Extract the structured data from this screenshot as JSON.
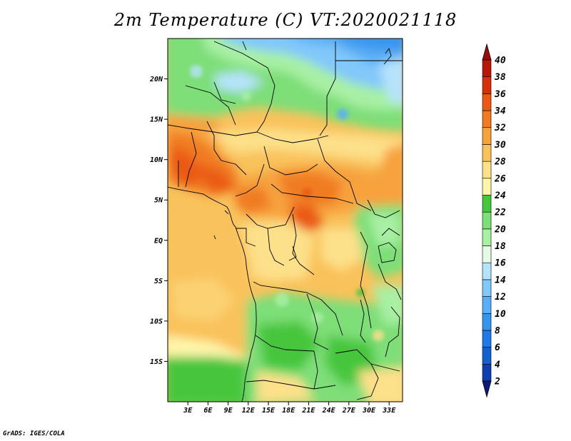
{
  "title": "2m Temperature (C) VT:2020021118",
  "credit": "GrADS: IGES/COLA",
  "chart_data": {
    "type": "heatmap",
    "title": "2m Temperature (C) VT:2020021118",
    "x_ticks": [
      "3E",
      "6E",
      "9E",
      "12E",
      "15E",
      "18E",
      "21E",
      "24E",
      "27E",
      "30E",
      "33E"
    ],
    "y_ticks": [
      "20N",
      "15N",
      "10N",
      "5N",
      "EQ",
      "5S",
      "10S",
      "15S"
    ],
    "lon_range": [
      0,
      35
    ],
    "lat_range": [
      -20,
      25
    ],
    "colorbar": {
      "labels": [
        "40",
        "38",
        "36",
        "34",
        "32",
        "30",
        "28",
        "26",
        "24",
        "22",
        "20",
        "18",
        "16",
        "14",
        "12",
        "10",
        "8",
        "6",
        "4",
        "2"
      ],
      "levels": [
        2,
        4,
        6,
        8,
        10,
        12,
        14,
        16,
        18,
        20,
        22,
        24,
        26,
        28,
        30,
        32,
        34,
        36,
        38,
        40
      ],
      "colors": [
        "#0c1a78",
        "#0f3fae",
        "#1460cc",
        "#1e7ae6",
        "#3794ee",
        "#5aaef5",
        "#82c8fa",
        "#b6e3fc",
        "#e6fbe6",
        "#a8f0a4",
        "#7ede78",
        "#46c63e",
        "#fff6ab",
        "#fde08a",
        "#f9c25b",
        "#f7a23c",
        "#f07b22",
        "#ea5a14",
        "#d7300c",
        "#b81808",
        "#9a0b0b"
      ],
      "extend": "both"
    }
  }
}
